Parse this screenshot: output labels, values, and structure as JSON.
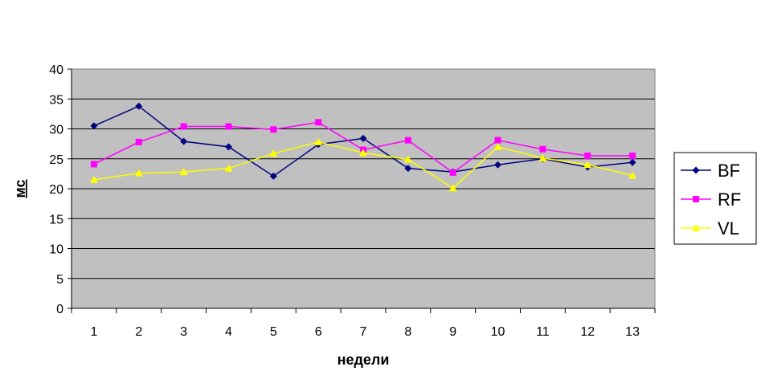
{
  "chart_data": {
    "type": "line",
    "title": "",
    "xlabel": "недели",
    "ylabel": "мс",
    "ylim": [
      0,
      40
    ],
    "yticks": [
      0,
      5,
      10,
      15,
      20,
      25,
      30,
      35,
      40
    ],
    "categories": [
      "1",
      "2",
      "3",
      "4",
      "5",
      "6",
      "7",
      "8",
      "9",
      "10",
      "11",
      "12",
      "13"
    ],
    "grid": true,
    "plot_background": "#c0c0c0",
    "legend_position": "right",
    "series": [
      {
        "name": "BF",
        "color": "#000080",
        "marker": "diamond",
        "values": [
          30.5,
          33.8,
          27.9,
          27.0,
          22.1,
          27.4,
          28.4,
          23.4,
          22.8,
          24.0,
          25.0,
          23.6,
          24.4
        ]
      },
      {
        "name": "RF",
        "color": "#ff00ff",
        "marker": "square",
        "values": [
          24.1,
          27.8,
          30.4,
          30.4,
          29.9,
          31.1,
          26.5,
          28.1,
          22.7,
          28.1,
          26.6,
          25.5,
          25.5
        ]
      },
      {
        "name": "VL",
        "color": "#ffff00",
        "marker": "triangle",
        "values": [
          21.5,
          22.6,
          22.8,
          23.4,
          25.9,
          27.8,
          26.0,
          24.9,
          20.1,
          27.0,
          25.1,
          24.0,
          22.2
        ]
      }
    ]
  }
}
